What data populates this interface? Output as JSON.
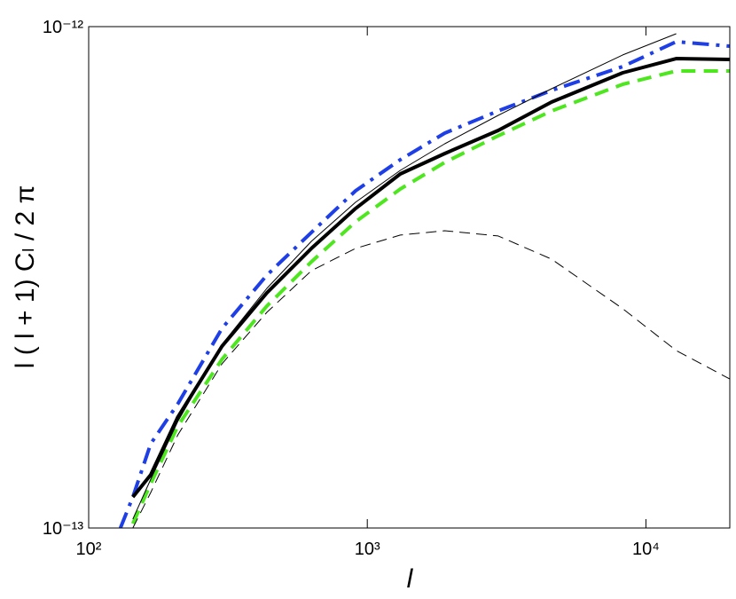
{
  "chart_data": {
    "type": "line",
    "xlabel": "l",
    "ylabel": "l ( l + 1) Cₗ / 2 π",
    "xscale": "log",
    "yscale": "log",
    "xlim": [
      100,
      20000
    ],
    "ylim": [
      1e-13,
      1e-12
    ],
    "xticks": [
      {
        "value": 100,
        "label": "10²"
      },
      {
        "value": 1000,
        "label": "10³"
      },
      {
        "value": 10000,
        "label": "10⁴"
      }
    ],
    "yticks": [
      {
        "value": 1e-13,
        "label": "10⁻¹³"
      },
      {
        "value": 1e-12,
        "label": "10⁻¹²"
      }
    ],
    "x": [
      130,
      144,
      167,
      209,
      301,
      436,
      630,
      908,
      1313,
      1897,
      2950,
      4585,
      8260,
      12850,
      20000
    ],
    "series": [
      {
        "color": "#1f3fe6",
        "style": "dashdot",
        "width": 4,
        "values": [
          1e-13,
          1.153e-13,
          1.473e-13,
          1.769e-13,
          2.502e-13,
          3.194e-13,
          3.886e-13,
          4.706e-13,
          5.426e-13,
          6.133e-13,
          6.79e-13,
          7.461e-13,
          8.324e-13,
          9.331e-13,
          9.144e-13
        ]
      },
      {
        "color": "#000000",
        "style": "solid",
        "width": 4,
        "values": [
          null,
          1.153e-13,
          1.277e-13,
          1.665e-13,
          2.305e-13,
          2.944e-13,
          3.611e-13,
          4.338e-13,
          5.083e-13,
          5.583e-13,
          6.208e-13,
          7.073e-13,
          8.091e-13,
          8.636e-13,
          8.6e-13
        ]
      },
      {
        "color": "#4de61f",
        "style": "dashed",
        "width": 4,
        "values": [
          null,
          1.02e-13,
          1.226e-13,
          1.598e-13,
          2.171e-13,
          2.771e-13,
          3.396e-13,
          4.079e-13,
          4.744e-13,
          5.36e-13,
          6.058e-13,
          6.79e-13,
          7.674e-13,
          8.155e-13,
          8.155e-13
        ]
      },
      {
        "color": "#000000",
        "style": "solid",
        "width": 1,
        "values": [
          null,
          1.042e-13,
          1.251e-13,
          1.632e-13,
          2.324e-13,
          3.005e-13,
          3.731e-13,
          4.464e-13,
          5.167e-13,
          5.84e-13,
          6.653e-13,
          7.518e-13,
          8.78e-13,
          9.678e-13,
          null
        ]
      },
      {
        "color": "#000000",
        "style": "dashed",
        "width": 1,
        "values": [
          null,
          1e-13,
          1.177e-13,
          1.534e-13,
          2.126e-13,
          2.692e-13,
          3.26e-13,
          3.611e-13,
          3.839e-13,
          3.917e-13,
          3.823e-13,
          3.438e-13,
          2.737e-13,
          2.259e-13,
          1.982e-13
        ]
      }
    ]
  }
}
